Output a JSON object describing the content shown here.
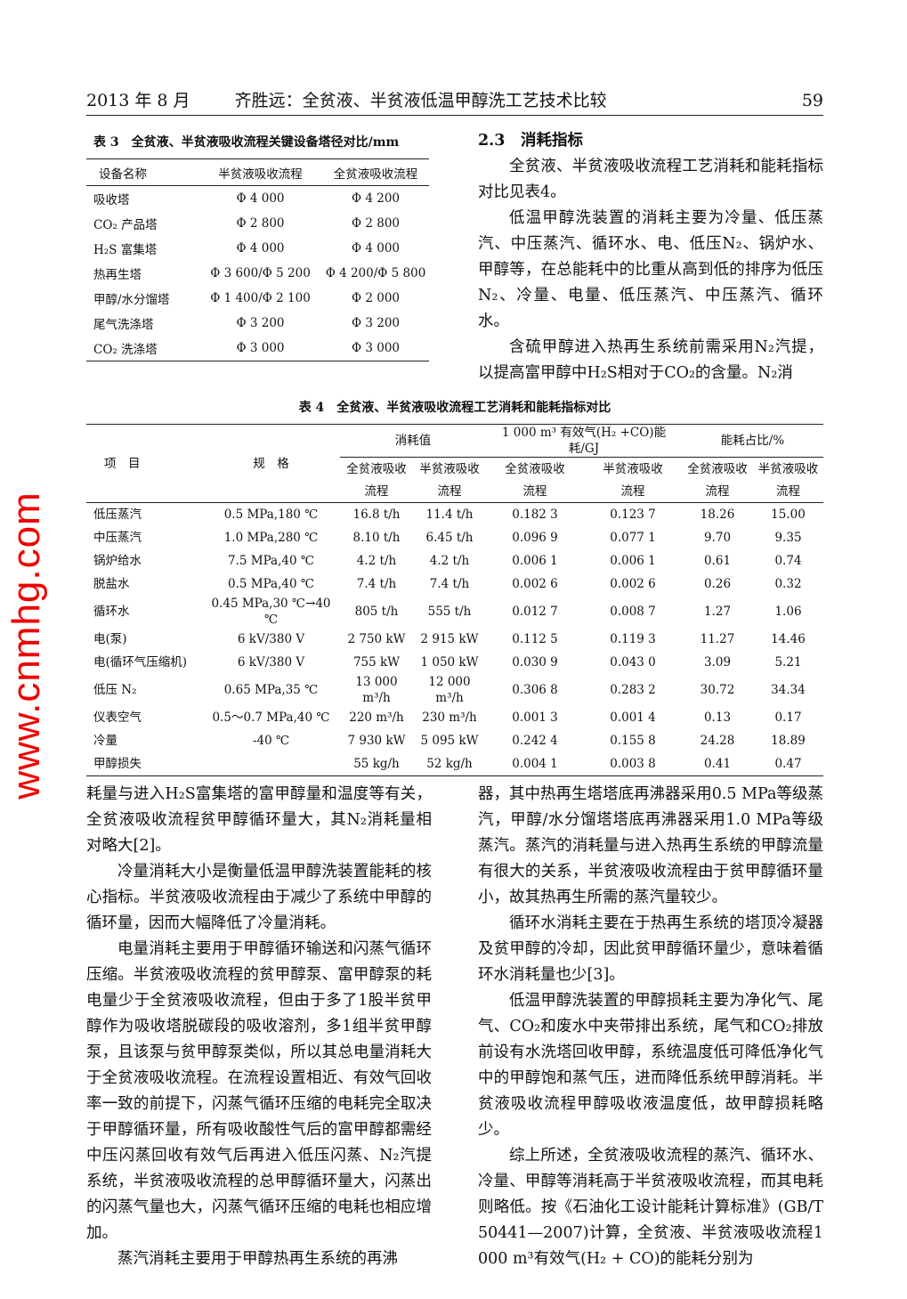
{
  "header": {
    "date": "2013 年 8 月",
    "running_title": "齐胜远：全贫液、半贫液低温甲醇洗工艺技术比较",
    "page_number": "59"
  },
  "table3": {
    "title": "表 3　全贫液、半贫液吸收流程关键设备塔径对比/mm",
    "columns": [
      "设备名称",
      "半贫液吸收流程",
      "全贫液吸收流程"
    ],
    "rows": [
      [
        "吸收塔",
        "Φ 4 000",
        "Φ 4 200"
      ],
      [
        "CO₂ 产品塔",
        "Φ 2 800",
        "Φ 2 800"
      ],
      [
        "H₂S 富集塔",
        "Φ 4 000",
        "Φ 4 000"
      ],
      [
        "热再生塔",
        "Φ 3 600/Φ 5 200",
        "Φ 4 200/Φ 5 800"
      ],
      [
        "甲醇/水分馏塔",
        "Φ 1 400/Φ 2 100",
        "Φ 2 000"
      ],
      [
        "尾气洗涤塔",
        "Φ 3 200",
        "Φ 3 200"
      ],
      [
        "CO₂ 洗涤塔",
        "Φ 3 000",
        "Φ 3 000"
      ]
    ]
  },
  "table4": {
    "title": "表 4　全贫液、半贫液吸收流程工艺消耗和能耗指标对比",
    "header_item": "项　目",
    "header_spec": "规　格",
    "group_consumption": "消耗值",
    "group_energy": "1 000 m³ 有效气(H₂ +CO)能耗/GJ",
    "group_ratio": "能耗占比/%",
    "sub_full": "全贫液吸收",
    "sub_semi": "半贫液吸收",
    "sub_flow": "流程",
    "rows": [
      [
        "低压蒸汽",
        "0.5 MPa,180 ℃",
        "16.8 t/h",
        "11.4 t/h",
        "0.182 3",
        "0.123 7",
        "18.26",
        "15.00"
      ],
      [
        "中压蒸汽",
        "1.0 MPa,280 ℃",
        "8.10 t/h",
        "6.45 t/h",
        "0.096 9",
        "0.077 1",
        "9.70",
        "9.35"
      ],
      [
        "锅炉给水",
        "7.5 MPa,40 ℃",
        "4.2 t/h",
        "4.2 t/h",
        "0.006 1",
        "0.006 1",
        "0.61",
        "0.74"
      ],
      [
        "脱盐水",
        "0.5 MPa,40 ℃",
        "7.4 t/h",
        "7.4 t/h",
        "0.002 6",
        "0.002 6",
        "0.26",
        "0.32"
      ],
      [
        "循环水",
        "0.45 MPa,30 ℃→40 ℃",
        "805 t/h",
        "555 t/h",
        "0.012 7",
        "0.008 7",
        "1.27",
        "1.06"
      ],
      [
        "电(泵)",
        "6 kV/380 V",
        "2 750 kW",
        "2 915 kW",
        "0.112 5",
        "0.119 3",
        "11.27",
        "14.46"
      ],
      [
        "电(循环气压缩机)",
        "6 kV/380 V",
        "755 kW",
        "1 050 kW",
        "0.030 9",
        "0.043 0",
        "3.09",
        "5.21"
      ],
      [
        "低压 N₂",
        "0.65 MPa,35 ℃",
        "13 000 m³/h",
        "12 000 m³/h",
        "0.306 8",
        "0.283 2",
        "30.72",
        "34.34"
      ],
      [
        "仪表空气",
        "0.5～0.7 MPa,40 ℃",
        "220 m³/h",
        "230 m³/h",
        "0.001 3",
        "0.001 4",
        "0.13",
        "0.17"
      ],
      [
        "冷量",
        "-40 ℃",
        "7 930 kW",
        "5 095 kW",
        "0.242 4",
        "0.155 8",
        "24.28",
        "18.89"
      ],
      [
        "甲醇损失",
        "",
        "55 kg/h",
        "52 kg/h",
        "0.004 1",
        "0.003 8",
        "0.41",
        "0.47"
      ]
    ]
  },
  "right_top": {
    "section": "2.3　消耗指标",
    "paragraphs": [
      "全贫液、半贫液吸收流程工艺消耗和能耗指标对比见表4。",
      "低温甲醇洗装置的消耗主要为冷量、低压蒸汽、中压蒸汽、循环水、电、低压N₂、锅炉水、甲醇等，在总能耗中的比重从高到低的排序为低压N₂、冷量、电量、低压蒸汽、中压蒸汽、循环水。",
      "含硫甲醇进入热再生系统前需采用N₂汽提，以提高富甲醇中H₂S相对于CO₂的含量。N₂消"
    ]
  },
  "left_bottom": {
    "paragraphs": [
      "耗量与进入H₂S富集塔的富甲醇量和温度等有关，全贫液吸收流程贫甲醇循环量大，其N₂消耗量相对略大[2]。",
      "冷量消耗大小是衡量低温甲醇洗装置能耗的核心指标。半贫液吸收流程由于减少了系统中甲醇的循环量，因而大幅降低了冷量消耗。",
      "电量消耗主要用于甲醇循环输送和闪蒸气循环压缩。半贫液吸收流程的贫甲醇泵、富甲醇泵的耗电量少于全贫液吸收流程，但由于多了1股半贫甲醇作为吸收塔脱碳段的吸收溶剂，多1组半贫甲醇泵，且该泵与贫甲醇泵类似，所以其总电量消耗大于全贫液吸收流程。在流程设置相近、有效气回收率一致的前提下，闪蒸气循环压缩的电耗完全取决于甲醇循环量，所有吸收酸性气后的富甲醇都需经中压闪蒸回收有效气后再进入低压闪蒸、N₂汽提系统，半贫液吸收流程的总甲醇循环量大，闪蒸出的闪蒸气量也大，闪蒸气循环压缩的电耗也相应增加。",
      "蒸汽消耗主要用于甲醇热再生系统的再沸"
    ]
  },
  "right_bottom": {
    "paragraphs": [
      "器，其中热再生塔塔底再沸器采用0.5 MPa等级蒸汽，甲醇/水分馏塔塔底再沸器采用1.0 MPa等级蒸汽。蒸汽的消耗量与进入热再生系统的甲醇流量有很大的关系，半贫液吸收流程由于贫甲醇循环量小，故其热再生所需的蒸汽量较少。",
      "循环水消耗主要在于热再生系统的塔顶冷凝器及贫甲醇的冷却，因此贫甲醇循环量少，意味着循环水消耗量也少[3]。",
      "低温甲醇洗装置的甲醇损耗主要为净化气、尾气、CO₂和废水中夹带排出系统，尾气和CO₂排放前设有水洗塔回收甲醇，系统温度低可降低净化气中的甲醇饱和蒸气压，进而降低系统甲醇消耗。半贫液吸收流程甲醇吸收液温度低，故甲醇损耗略少。",
      "综上所述，全贫液吸收流程的蒸汽、循环水、冷量、甲醇等消耗高于半贫液吸收流程，而其电耗则略低。按《石油化工设计能耗计算标准》(GB/T 50441—2007)计算，全贫液、半贫液吸收流程1 000 m³有效气(H₂ + CO)的能耗分别为"
    ]
  },
  "watermark": {
    "text": "www.cnmhg.com",
    "color": "#e00000"
  }
}
